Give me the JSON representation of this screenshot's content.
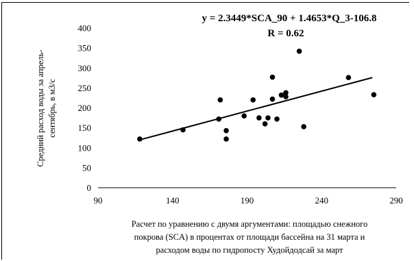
{
  "chart_data": {
    "type": "scatter",
    "equation": "y = 2.3449*SCA_90 + 1.4653*Q_3-106.8",
    "r_label": "R = 0.62",
    "ylabel_lines": [
      "Средний расход воды за апрель-",
      "сентябрь, в м3/с"
    ],
    "xlabel_lines": [
      "Расчет по уравнению с двумя аргументами: площадью снежного",
      "покрова (SCA) в процентах от площади бассейна на 31 марта и",
      "расходом воды по гидропосту Худойдодсай за март"
    ],
    "xlim": [
      90,
      290
    ],
    "ylim": [
      0,
      400
    ],
    "xticks": [
      90,
      140,
      190,
      240,
      290
    ],
    "yticks": [
      0,
      50,
      100,
      150,
      200,
      250,
      300,
      350,
      400
    ],
    "grid": false,
    "points": [
      {
        "x": 118,
        "y": 122
      },
      {
        "x": 147,
        "y": 145
      },
      {
        "x": 171,
        "y": 172
      },
      {
        "x": 172,
        "y": 220
      },
      {
        "x": 176,
        "y": 143
      },
      {
        "x": 176,
        "y": 122
      },
      {
        "x": 188,
        "y": 180
      },
      {
        "x": 194,
        "y": 220
      },
      {
        "x": 198,
        "y": 175
      },
      {
        "x": 202,
        "y": 160
      },
      {
        "x": 204,
        "y": 175
      },
      {
        "x": 207,
        "y": 277
      },
      {
        "x": 207,
        "y": 222
      },
      {
        "x": 210,
        "y": 172
      },
      {
        "x": 213,
        "y": 232
      },
      {
        "x": 216,
        "y": 238
      },
      {
        "x": 216,
        "y": 228
      },
      {
        "x": 225,
        "y": 342
      },
      {
        "x": 228,
        "y": 153
      },
      {
        "x": 258,
        "y": 276
      },
      {
        "x": 275,
        "y": 233
      }
    ],
    "trendline": [
      {
        "x": 117,
        "y": 119
      },
      {
        "x": 274,
        "y": 276
      }
    ],
    "colors": {
      "points": "#000000",
      "trendline": "#000000",
      "axes": "#000000"
    }
  }
}
